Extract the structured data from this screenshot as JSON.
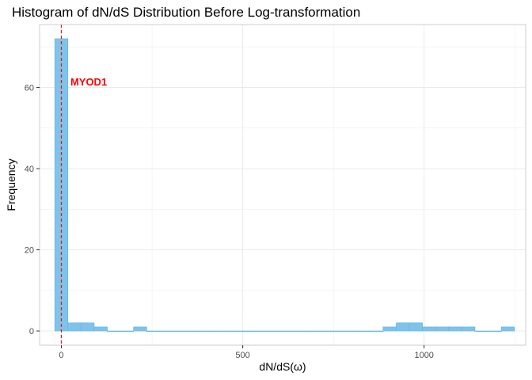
{
  "chart_data": {
    "type": "bar",
    "title": "Histogram of dN/dS Distribution Before Log-transformation",
    "xlabel": "dN/dS(ω)",
    "ylabel": "Frequency",
    "xlim": [
      -60,
      1280
    ],
    "ylim": [
      -3.5,
      75.5
    ],
    "x_ticks": [
      0,
      500,
      1000
    ],
    "y_ticks": [
      0,
      20,
      40,
      60
    ],
    "bin_width": 36.2,
    "bins": [
      {
        "start": -18.1,
        "end": 18.1,
        "count": 72
      },
      {
        "start": 18.1,
        "end": 54.3,
        "count": 2
      },
      {
        "start": 54.3,
        "end": 90.5,
        "count": 2
      },
      {
        "start": 90.5,
        "end": 126.7,
        "count": 1
      },
      {
        "start": 126.7,
        "end": 162.9,
        "count": 0
      },
      {
        "start": 162.9,
        "end": 199.1,
        "count": 0
      },
      {
        "start": 199.1,
        "end": 235.3,
        "count": 1
      },
      {
        "start": 235.3,
        "end": 271.5,
        "count": 0
      },
      {
        "start": 271.5,
        "end": 307.7,
        "count": 0
      },
      {
        "start": 307.7,
        "end": 343.9,
        "count": 0
      },
      {
        "start": 343.9,
        "end": 380.1,
        "count": 0
      },
      {
        "start": 380.1,
        "end": 416.3,
        "count": 0
      },
      {
        "start": 416.3,
        "end": 452.5,
        "count": 0
      },
      {
        "start": 452.5,
        "end": 488.7,
        "count": 0
      },
      {
        "start": 488.7,
        "end": 524.9,
        "count": 0
      },
      {
        "start": 524.9,
        "end": 561.1,
        "count": 0
      },
      {
        "start": 561.1,
        "end": 597.3,
        "count": 0
      },
      {
        "start": 597.3,
        "end": 633.5,
        "count": 0
      },
      {
        "start": 633.5,
        "end": 669.7,
        "count": 0
      },
      {
        "start": 669.7,
        "end": 705.9,
        "count": 0
      },
      {
        "start": 705.9,
        "end": 742.1,
        "count": 0
      },
      {
        "start": 742.1,
        "end": 778.3,
        "count": 0
      },
      {
        "start": 778.3,
        "end": 814.5,
        "count": 0
      },
      {
        "start": 814.5,
        "end": 850.7,
        "count": 0
      },
      {
        "start": 850.7,
        "end": 886.9,
        "count": 0
      },
      {
        "start": 886.9,
        "end": 923.1,
        "count": 1
      },
      {
        "start": 923.1,
        "end": 959.3,
        "count": 2
      },
      {
        "start": 959.3,
        "end": 995.5,
        "count": 2
      },
      {
        "start": 995.5,
        "end": 1031.7,
        "count": 1
      },
      {
        "start": 1031.7,
        "end": 1067.9,
        "count": 1
      },
      {
        "start": 1067.9,
        "end": 1104.1,
        "count": 1
      },
      {
        "start": 1104.1,
        "end": 1140.3,
        "count": 1
      },
      {
        "start": 1140.3,
        "end": 1176.5,
        "count": 0
      },
      {
        "start": 1176.5,
        "end": 1212.7,
        "count": 0
      },
      {
        "start": 1212.7,
        "end": 1248.9,
        "count": 1
      }
    ],
    "reference_line": {
      "x": 0,
      "color": "#e31a1c",
      "style": "dashed"
    },
    "annotation": {
      "text": "MYOD1",
      "x": 25,
      "y": 61.5,
      "color": "#ff0000"
    },
    "colors": {
      "bar_fill": "#7fc3ea",
      "bar_outline": "#5ab4e5",
      "grid": "#ebebeb",
      "panel_border": "#cccccc"
    },
    "grid": true,
    "legend": "none"
  }
}
